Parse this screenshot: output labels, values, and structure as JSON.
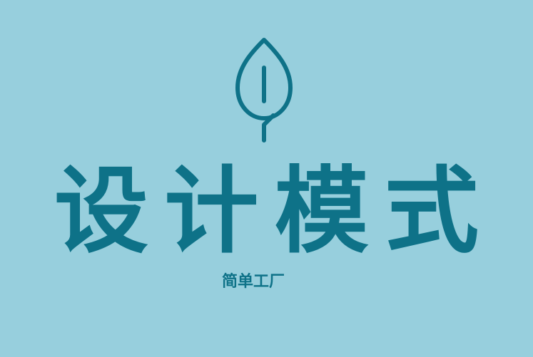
{
  "logo": {
    "icon": "leaf-icon",
    "color": "#0e7288"
  },
  "title": {
    "chars": [
      "设",
      "计",
      "模",
      "式"
    ],
    "color": "#0e7288"
  },
  "subtitle": {
    "text": "简单工厂",
    "color": "#0e7288"
  },
  "background_color": "#97cfdd"
}
